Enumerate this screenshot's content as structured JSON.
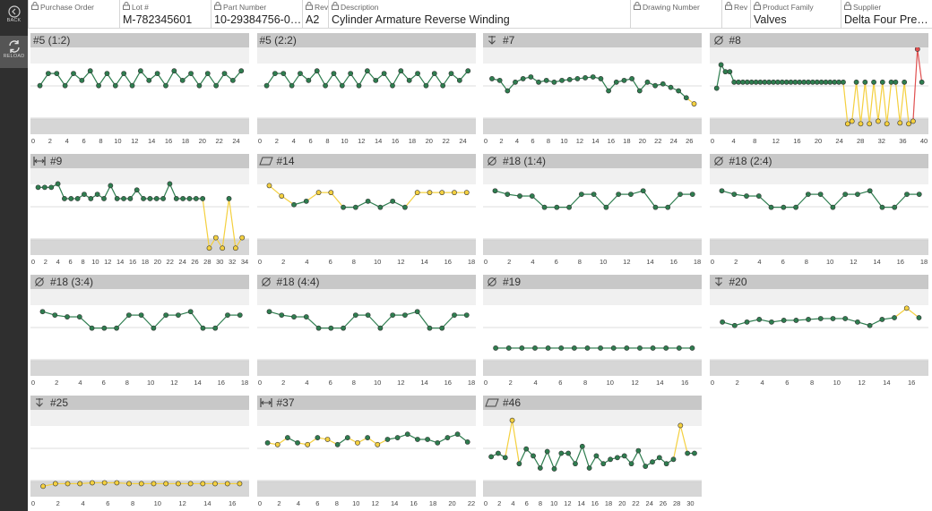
{
  "sidebar": {
    "back_label": "BACK",
    "reload_label": "RELOAD"
  },
  "header": {
    "fields": [
      {
        "label": "Purchase Order",
        "value": "",
        "locked": true
      },
      {
        "label": "Lot #",
        "value": "M-782345601",
        "locked": true
      },
      {
        "label": "Part Number",
        "value": "10-29384756-001",
        "locked": true
      },
      {
        "label": "Rev",
        "value": "A2",
        "locked": true
      },
      {
        "label": "Description",
        "value": "Cylinder Armature Reverse Winding",
        "locked": true
      },
      {
        "label": "Drawing Number",
        "value": "",
        "locked": true
      },
      {
        "label": "Rev",
        "value": "",
        "locked": true
      },
      {
        "label": "Product Family",
        "value": "Valves",
        "locked": true
      },
      {
        "label": "Supplier",
        "value": "Delta Four Preci...",
        "locked": true
      }
    ]
  },
  "colors": {
    "in_spec": "#2e7d4f",
    "warning": "#f4d03f",
    "out_of_spec": "#e05050",
    "title_bg": "#c8c8c8"
  },
  "charts": [
    {
      "title": "#5 (1:2)",
      "icon": "none",
      "xmax": 25,
      "ticks": [
        0,
        2,
        4,
        6,
        8,
        10,
        12,
        14,
        16,
        18,
        20,
        22,
        24
      ],
      "values": [
        0.56,
        0.7,
        0.7,
        0.56,
        0.7,
        0.62,
        0.73,
        0.56,
        0.7,
        0.56,
        0.7,
        0.56,
        0.73,
        0.62,
        0.7,
        0.56,
        0.73,
        0.62,
        0.7,
        0.56,
        0.7,
        0.56,
        0.7,
        0.62,
        0.73
      ],
      "status": [
        "g",
        "g",
        "g",
        "g",
        "g",
        "g",
        "g",
        "g",
        "g",
        "g",
        "g",
        "g",
        "g",
        "g",
        "g",
        "g",
        "g",
        "g",
        "g",
        "g",
        "g",
        "g",
        "g",
        "g",
        "g"
      ]
    },
    {
      "title": "#5 (2:2)",
      "icon": "none",
      "xmax": 25,
      "ticks": [
        0,
        2,
        4,
        6,
        8,
        10,
        12,
        14,
        16,
        18,
        20,
        22,
        24
      ],
      "values": [
        0.56,
        0.7,
        0.7,
        0.56,
        0.7,
        0.62,
        0.73,
        0.56,
        0.7,
        0.56,
        0.7,
        0.56,
        0.73,
        0.62,
        0.7,
        0.56,
        0.73,
        0.62,
        0.7,
        0.56,
        0.7,
        0.56,
        0.7,
        0.62,
        0.73
      ],
      "status": [
        "g",
        "g",
        "g",
        "g",
        "g",
        "g",
        "g",
        "g",
        "g",
        "g",
        "g",
        "g",
        "g",
        "g",
        "g",
        "g",
        "g",
        "g",
        "g",
        "g",
        "g",
        "g",
        "g",
        "g",
        "g"
      ]
    },
    {
      "title": "#7",
      "icon": "depth-icon",
      "xmax": 27,
      "ticks": [
        0,
        2,
        4,
        6,
        8,
        10,
        12,
        14,
        16,
        18,
        20,
        22,
        24,
        26
      ],
      "values": [
        0.64,
        0.62,
        0.5,
        0.6,
        0.64,
        0.66,
        0.6,
        0.62,
        0.6,
        0.62,
        0.63,
        0.64,
        0.65,
        0.66,
        0.64,
        0.5,
        0.6,
        0.62,
        0.64,
        0.5,
        0.6,
        0.56,
        0.58,
        0.54,
        0.5,
        0.42,
        0.35
      ],
      "status": [
        "g",
        "g",
        "g",
        "g",
        "g",
        "g",
        "g",
        "g",
        "g",
        "g",
        "g",
        "g",
        "g",
        "g",
        "g",
        "g",
        "g",
        "g",
        "g",
        "g",
        "g",
        "g",
        "g",
        "g",
        "g",
        "g",
        "y"
      ]
    },
    {
      "title": "#8",
      "icon": "diameter-icon",
      "xmax": 40,
      "ticks": [
        0,
        4,
        8,
        12,
        16,
        20,
        24,
        28,
        32,
        36,
        40
      ],
      "values": [
        0.53,
        0.8,
        0.72,
        0.72,
        0.6,
        0.6,
        0.6,
        0.6,
        0.6,
        0.6,
        0.6,
        0.6,
        0.6,
        0.6,
        0.6,
        0.6,
        0.6,
        0.6,
        0.6,
        0.6,
        0.6,
        0.6,
        0.6,
        0.6,
        0.6,
        0.6,
        0.6,
        0.6,
        0.6,
        0.6,
        0.12,
        0.15,
        0.6,
        0.12,
        0.6,
        0.12,
        0.6,
        0.15,
        0.6,
        0.12,
        0.6,
        0.6,
        0.13,
        0.6,
        0.12,
        0.15,
        0.98,
        0.6
      ],
      "status": [
        "g",
        "g",
        "g",
        "g",
        "g",
        "g",
        "g",
        "g",
        "g",
        "g",
        "g",
        "g",
        "g",
        "g",
        "g",
        "g",
        "g",
        "g",
        "g",
        "g",
        "g",
        "g",
        "g",
        "g",
        "g",
        "g",
        "g",
        "g",
        "g",
        "g",
        "y",
        "y",
        "g",
        "y",
        "g",
        "y",
        "g",
        "y",
        "g",
        "y",
        "g",
        "g",
        "y",
        "g",
        "y",
        "y",
        "r",
        "g"
      ]
    },
    {
      "title": "#9",
      "icon": "width-icon",
      "xmax": 34,
      "ticks": [
        0,
        2,
        4,
        6,
        8,
        10,
        12,
        14,
        16,
        18,
        20,
        22,
        24,
        26,
        28,
        30,
        32,
        34
      ],
      "values": [
        0.78,
        0.78,
        0.78,
        0.82,
        0.65,
        0.65,
        0.65,
        0.7,
        0.65,
        0.7,
        0.65,
        0.8,
        0.65,
        0.65,
        0.65,
        0.75,
        0.65,
        0.65,
        0.65,
        0.65,
        0.82,
        0.65,
        0.65,
        0.65,
        0.65,
        0.65,
        0.08,
        0.2,
        0.08,
        0.65,
        0.08,
        0.2
      ],
      "status": [
        "g",
        "g",
        "g",
        "g",
        "g",
        "g",
        "g",
        "g",
        "g",
        "g",
        "g",
        "g",
        "g",
        "g",
        "g",
        "g",
        "g",
        "g",
        "g",
        "g",
        "g",
        "g",
        "g",
        "g",
        "g",
        "g",
        "y",
        "y",
        "y",
        "g",
        "y",
        "y"
      ]
    },
    {
      "title": "#14",
      "icon": "flatness-icon",
      "xmax": 18,
      "ticks": [
        0,
        2,
        4,
        6,
        8,
        10,
        12,
        14,
        16,
        18
      ],
      "values": [
        0.8,
        0.68,
        0.58,
        0.62,
        0.72,
        0.72,
        0.55,
        0.55,
        0.62,
        0.55,
        0.62,
        0.55,
        0.72,
        0.72,
        0.72,
        0.72,
        0.72
      ],
      "status": [
        "y",
        "y",
        "g",
        "g",
        "y",
        "y",
        "g",
        "g",
        "g",
        "g",
        "g",
        "g",
        "y",
        "y",
        "y",
        "y",
        "y"
      ]
    },
    {
      "title": "#18 (1:4)",
      "icon": "diameter-icon",
      "xmax": 18,
      "ticks": [
        0,
        2,
        4,
        6,
        8,
        10,
        12,
        14,
        16,
        18
      ],
      "values": [
        0.74,
        0.7,
        0.68,
        0.68,
        0.55,
        0.55,
        0.55,
        0.7,
        0.7,
        0.55,
        0.7,
        0.7,
        0.74,
        0.55,
        0.55,
        0.7,
        0.7
      ],
      "status": [
        "g",
        "g",
        "g",
        "g",
        "g",
        "g",
        "g",
        "g",
        "g",
        "g",
        "g",
        "g",
        "g",
        "g",
        "g",
        "g",
        "g"
      ]
    },
    {
      "title": "#18 (2:4)",
      "icon": "diameter-icon",
      "xmax": 18,
      "ticks": [
        0,
        2,
        4,
        6,
        8,
        10,
        12,
        14,
        16,
        18
      ],
      "values": [
        0.74,
        0.7,
        0.68,
        0.68,
        0.55,
        0.55,
        0.55,
        0.7,
        0.7,
        0.55,
        0.7,
        0.7,
        0.74,
        0.55,
        0.55,
        0.7,
        0.7
      ],
      "status": [
        "g",
        "g",
        "g",
        "g",
        "g",
        "g",
        "g",
        "g",
        "g",
        "g",
        "g",
        "g",
        "g",
        "g",
        "g",
        "g",
        "g"
      ]
    },
    {
      "title": "#18 (3:4)",
      "icon": "diameter-icon",
      "xmax": 18,
      "ticks": [
        0,
        2,
        4,
        6,
        8,
        10,
        12,
        14,
        16,
        18
      ],
      "values": [
        0.74,
        0.7,
        0.68,
        0.68,
        0.55,
        0.55,
        0.55,
        0.7,
        0.7,
        0.55,
        0.7,
        0.7,
        0.74,
        0.55,
        0.55,
        0.7,
        0.7
      ],
      "status": [
        "g",
        "g",
        "g",
        "g",
        "g",
        "g",
        "g",
        "g",
        "g",
        "g",
        "g",
        "g",
        "g",
        "g",
        "g",
        "g",
        "g"
      ]
    },
    {
      "title": "#18 (4:4)",
      "icon": "diameter-icon",
      "xmax": 18,
      "ticks": [
        0,
        2,
        4,
        6,
        8,
        10,
        12,
        14,
        16,
        18
      ],
      "values": [
        0.74,
        0.7,
        0.68,
        0.68,
        0.55,
        0.55,
        0.55,
        0.7,
        0.7,
        0.55,
        0.7,
        0.7,
        0.74,
        0.55,
        0.55,
        0.7,
        0.7
      ],
      "status": [
        "g",
        "g",
        "g",
        "g",
        "g",
        "g",
        "g",
        "g",
        "g",
        "g",
        "g",
        "g",
        "g",
        "g",
        "g",
        "g",
        "g"
      ]
    },
    {
      "title": "#19",
      "icon": "diameter-icon",
      "xmax": 17,
      "ticks": [
        0,
        2,
        4,
        6,
        8,
        10,
        12,
        14,
        16
      ],
      "values": [
        0.32,
        0.32,
        0.32,
        0.32,
        0.32,
        0.32,
        0.32,
        0.32,
        0.32,
        0.32,
        0.32,
        0.32,
        0.32,
        0.32,
        0.32,
        0.32
      ],
      "status": [
        "g",
        "g",
        "g",
        "g",
        "g",
        "g",
        "g",
        "g",
        "g",
        "g",
        "g",
        "g",
        "g",
        "g",
        "g",
        "g"
      ]
    },
    {
      "title": "#20",
      "icon": "depth-icon",
      "xmax": 17,
      "ticks": [
        0,
        2,
        4,
        6,
        8,
        10,
        12,
        14,
        16
      ],
      "values": [
        0.62,
        0.58,
        0.62,
        0.65,
        0.62,
        0.64,
        0.64,
        0.65,
        0.66,
        0.66,
        0.66,
        0.62,
        0.58,
        0.65,
        0.67,
        0.78,
        0.67
      ],
      "status": [
        "g",
        "g",
        "g",
        "g",
        "g",
        "g",
        "g",
        "g",
        "g",
        "g",
        "g",
        "g",
        "g",
        "g",
        "g",
        "y",
        "g"
      ]
    },
    {
      "title": "#25",
      "icon": "depth-icon",
      "xmax": 17,
      "ticks": [
        0,
        2,
        4,
        6,
        8,
        10,
        12,
        14,
        16
      ],
      "values": [
        0.12,
        0.15,
        0.15,
        0.15,
        0.16,
        0.16,
        0.16,
        0.15,
        0.15,
        0.15,
        0.15,
        0.15,
        0.15,
        0.15,
        0.15,
        0.15,
        0.15
      ],
      "status": [
        "y",
        "y",
        "y",
        "y",
        "y",
        "y",
        "y",
        "y",
        "y",
        "y",
        "y",
        "y",
        "y",
        "y",
        "y",
        "y",
        "y"
      ]
    },
    {
      "title": "#37",
      "icon": "width-icon",
      "xmax": 22,
      "ticks": [
        0,
        2,
        4,
        6,
        8,
        10,
        12,
        14,
        16,
        18,
        20,
        22
      ],
      "values": [
        0.62,
        0.6,
        0.68,
        0.62,
        0.6,
        0.68,
        0.66,
        0.6,
        0.68,
        0.62,
        0.68,
        0.6,
        0.66,
        0.68,
        0.72,
        0.66,
        0.66,
        0.62,
        0.68,
        0.72,
        0.63
      ],
      "status": [
        "g",
        "y",
        "g",
        "g",
        "y",
        "g",
        "y",
        "g",
        "g",
        "y",
        "g",
        "y",
        "g",
        "g",
        "g",
        "g",
        "g",
        "g",
        "g",
        "g",
        "g"
      ]
    },
    {
      "title": "#46",
      "icon": "flatness-icon",
      "xmax": 31,
      "ticks": [
        0,
        2,
        4,
        6,
        8,
        10,
        12,
        14,
        16,
        18,
        20,
        22,
        24,
        26,
        28,
        30
      ],
      "values": [
        0.46,
        0.5,
        0.45,
        0.88,
        0.38,
        0.55,
        0.47,
        0.33,
        0.52,
        0.32,
        0.5,
        0.5,
        0.38,
        0.58,
        0.33,
        0.47,
        0.38,
        0.43,
        0.45,
        0.47,
        0.38,
        0.53,
        0.35,
        0.4,
        0.45,
        0.38,
        0.43,
        0.82,
        0.5,
        0.5
      ],
      "status": [
        "g",
        "g",
        "g",
        "y",
        "g",
        "g",
        "g",
        "g",
        "g",
        "g",
        "g",
        "g",
        "g",
        "g",
        "g",
        "g",
        "g",
        "g",
        "g",
        "g",
        "g",
        "g",
        "g",
        "g",
        "g",
        "g",
        "g",
        "y",
        "g",
        "g"
      ]
    }
  ]
}
